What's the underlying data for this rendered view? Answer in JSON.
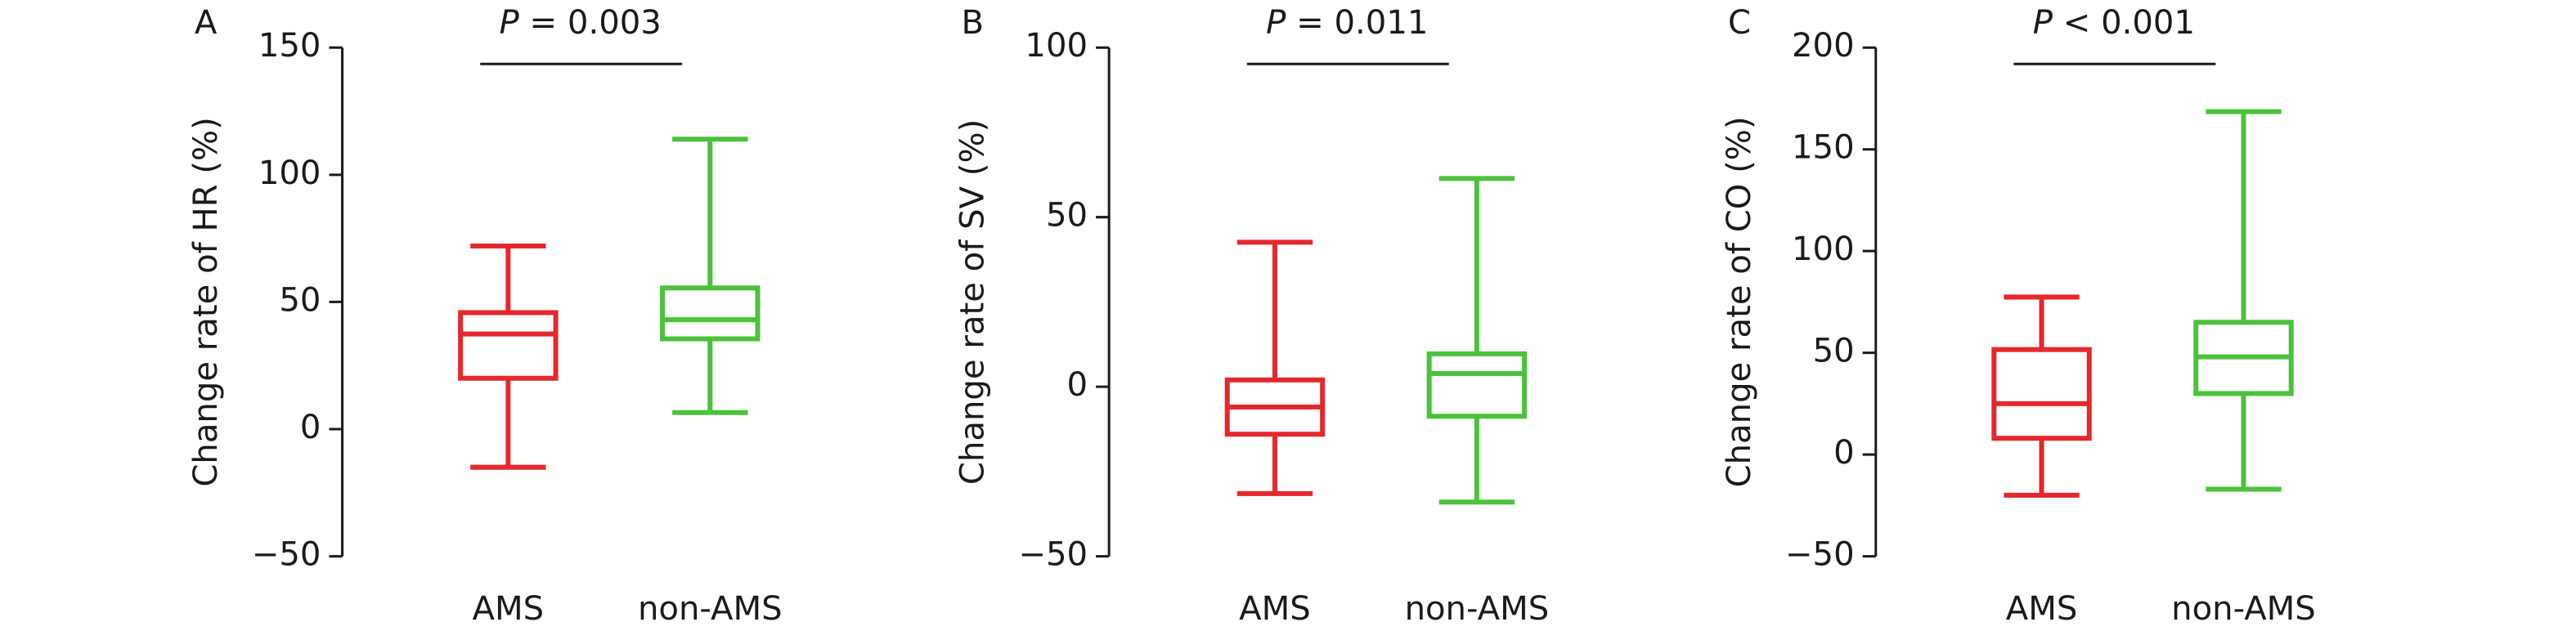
{
  "chart_data": [
    {
      "type": "box",
      "panel": "A",
      "ylabel": "Change rate of HR (%)",
      "annotation": {
        "symbol": "P",
        "text": "= 0.003"
      },
      "categories": [
        "AMS",
        "non-AMS"
      ],
      "colors": [
        "#e5282c",
        "#4cc23c"
      ],
      "min": [
        -15,
        6.5
      ],
      "q1": [
        20,
        35.5
      ],
      "median": [
        37.4,
        43
      ],
      "q3": [
        45.8,
        55.5
      ],
      "max": [
        72,
        114
      ],
      "ylim": [
        -50,
        150
      ],
      "yticks": [
        {
          "value": -50,
          "label": "−50"
        },
        0,
        50,
        100,
        150
      ]
    },
    {
      "type": "box",
      "panel": "B",
      "ylabel": "Change rate of SV (%)",
      "annotation": {
        "symbol": "P",
        "text": "= 0.011"
      },
      "categories": [
        "AMS",
        "non-AMS"
      ],
      "colors": [
        "#e5282c",
        "#4cc23c"
      ],
      "min": [
        -31.5,
        -34
      ],
      "q1": [
        -14,
        -8.7
      ],
      "median": [
        -6,
        3.9
      ],
      "q3": [
        2,
        9.7
      ],
      "max": [
        42.6,
        61.4
      ],
      "ylim": [
        -50,
        100
      ],
      "yticks": [
        {
          "value": -50,
          "label": "−50"
        },
        0,
        50,
        100
      ]
    },
    {
      "type": "box",
      "panel": "C",
      "ylabel": "Change rate of CO (%)",
      "annotation": {
        "symbol": "P",
        "text": "< 0.001"
      },
      "categories": [
        "AMS",
        "non-AMS"
      ],
      "colors": [
        "#e5282c",
        "#4cc23c"
      ],
      "min": [
        -20,
        -17
      ],
      "q1": [
        8,
        30
      ],
      "median": [
        25,
        48
      ],
      "q3": [
        51.6,
        65
      ],
      "max": [
        77.4,
        168.5
      ],
      "ylim": [
        -50,
        200
      ],
      "yticks": [
        {
          "value": -50,
          "label": "−50"
        },
        0,
        50,
        100,
        150,
        200
      ]
    }
  ]
}
